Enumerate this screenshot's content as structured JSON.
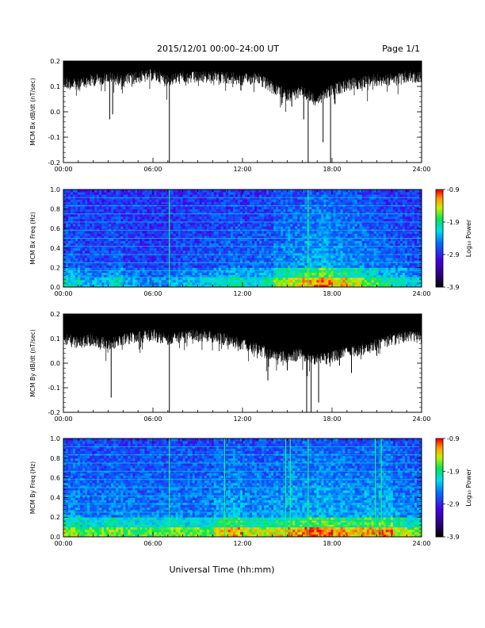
{
  "header": {
    "title": "2015/12/01   00:00–24:00 UT",
    "page": "Page 1/1"
  },
  "footer": {
    "xlabel": "Universal Time (hh:mm)"
  },
  "time_ticks": [
    "00:00",
    "06:00",
    "12:00",
    "18:00",
    "24:00"
  ],
  "colorbar": {
    "label": "Log₁₀ Power",
    "ticks": [
      "-0.9",
      "-1.9",
      "-2.9",
      "-3.9"
    ],
    "range": [
      -3.9,
      -0.9
    ]
  },
  "chart_data": [
    {
      "type": "line",
      "ylabel": "MCM Bx dB/dt (nT/sec)",
      "xlim": [
        0,
        24
      ],
      "ylim": [
        -0.2,
        0.2
      ],
      "yticks": [
        "-0.2",
        "-0.1",
        "0.0",
        "0.1",
        "0.2"
      ],
      "envelope_top": 0.2,
      "envelope_bottom_by_hour": [
        0.14,
        0.13,
        0.15,
        0.16,
        0.15,
        0.16,
        0.17,
        0.15,
        0.16,
        0.16,
        0.16,
        0.16,
        0.15,
        0.16,
        0.12,
        0.09,
        0.1,
        0.07,
        0.11,
        0.13,
        0.14,
        0.15,
        0.15,
        0.16
      ],
      "spikes": [
        {
          "t": 3.1,
          "y": -0.03
        },
        {
          "t": 3.3,
          "y": -0.01
        },
        {
          "t": 7.1,
          "y": -0.2
        },
        {
          "t": 14.2,
          "y": 0.07
        },
        {
          "t": 15.3,
          "y": 0.02
        },
        {
          "t": 16.1,
          "y": -0.03
        },
        {
          "t": 16.4,
          "y": -0.2
        },
        {
          "t": 17.4,
          "y": -0.12
        },
        {
          "t": 17.9,
          "y": -0.2
        },
        {
          "t": 18.2,
          "y": 0.03
        },
        {
          "t": 20.0,
          "y": 0.12
        }
      ]
    },
    {
      "type": "heatmap",
      "ylabel": "MCM Bx Freq (Hz)",
      "xlim": [
        0,
        24
      ],
      "ylim": [
        0,
        1
      ],
      "yticks": [
        "0.0",
        "0.2",
        "0.4",
        "0.6",
        "0.8",
        "1.0"
      ],
      "activity_by_hour": [
        0.35,
        0.25,
        0.25,
        0.35,
        0.25,
        0.2,
        0.2,
        0.25,
        0.3,
        0.3,
        0.35,
        0.4,
        0.35,
        0.4,
        0.55,
        0.6,
        0.7,
        0.75,
        0.65,
        0.6,
        0.5,
        0.4,
        0.35,
        0.3
      ],
      "harmonic_lines_hz": [
        0.1,
        0.167,
        0.25,
        0.333,
        0.417,
        0.5,
        0.583,
        0.667,
        0.75,
        0.833,
        0.917,
        1.0
      ],
      "vertical_lines": [
        7.1,
        16.4
      ]
    },
    {
      "type": "line",
      "ylabel": "MCM By dB/dt (nT/sec)",
      "xlim": [
        0,
        24
      ],
      "ylim": [
        -0.2,
        0.2
      ],
      "yticks": [
        "-0.2",
        "-0.1",
        "0.0",
        "0.1",
        "0.2"
      ],
      "envelope_top": 0.2,
      "envelope_bottom_by_hour": [
        0.12,
        0.11,
        0.12,
        0.1,
        0.12,
        0.13,
        0.14,
        0.12,
        0.13,
        0.14,
        0.13,
        0.12,
        0.1,
        0.08,
        0.06,
        0.05,
        0.06,
        0.04,
        0.05,
        0.07,
        0.08,
        0.1,
        0.12,
        0.13
      ],
      "spikes": [
        {
          "t": 1.5,
          "y": 0.07
        },
        {
          "t": 3.2,
          "y": -0.14
        },
        {
          "t": 7.1,
          "y": -0.2
        },
        {
          "t": 13.7,
          "y": -0.07
        },
        {
          "t": 15.0,
          "y": -0.03
        },
        {
          "t": 16.3,
          "y": -0.2
        },
        {
          "t": 16.6,
          "y": -0.2
        },
        {
          "t": 17.1,
          "y": -0.16
        },
        {
          "t": 18.5,
          "y": -0.01
        },
        {
          "t": 19.3,
          "y": -0.04
        },
        {
          "t": 21.0,
          "y": 0.03
        }
      ]
    },
    {
      "type": "heatmap",
      "ylabel": "MCM By Freq (Hz)",
      "xlim": [
        0,
        24
      ],
      "ylim": [
        0,
        1
      ],
      "yticks": [
        "0.0",
        "0.2",
        "0.4",
        "0.6",
        "0.8",
        "1.0"
      ],
      "activity_by_hour": [
        0.55,
        0.5,
        0.5,
        0.55,
        0.5,
        0.5,
        0.5,
        0.55,
        0.5,
        0.5,
        0.65,
        0.7,
        0.6,
        0.6,
        0.65,
        0.7,
        0.75,
        0.75,
        0.7,
        0.65,
        0.7,
        0.75,
        0.6,
        0.55
      ],
      "harmonic_lines_hz": [
        0.1,
        0.167,
        0.25,
        0.333,
        0.417,
        0.5,
        0.583,
        0.667,
        0.75,
        0.833,
        0.917,
        1.0
      ],
      "vertical_lines": [
        7.1,
        10.8,
        14.9,
        15.2,
        16.4,
        20.9,
        21.3
      ]
    }
  ]
}
